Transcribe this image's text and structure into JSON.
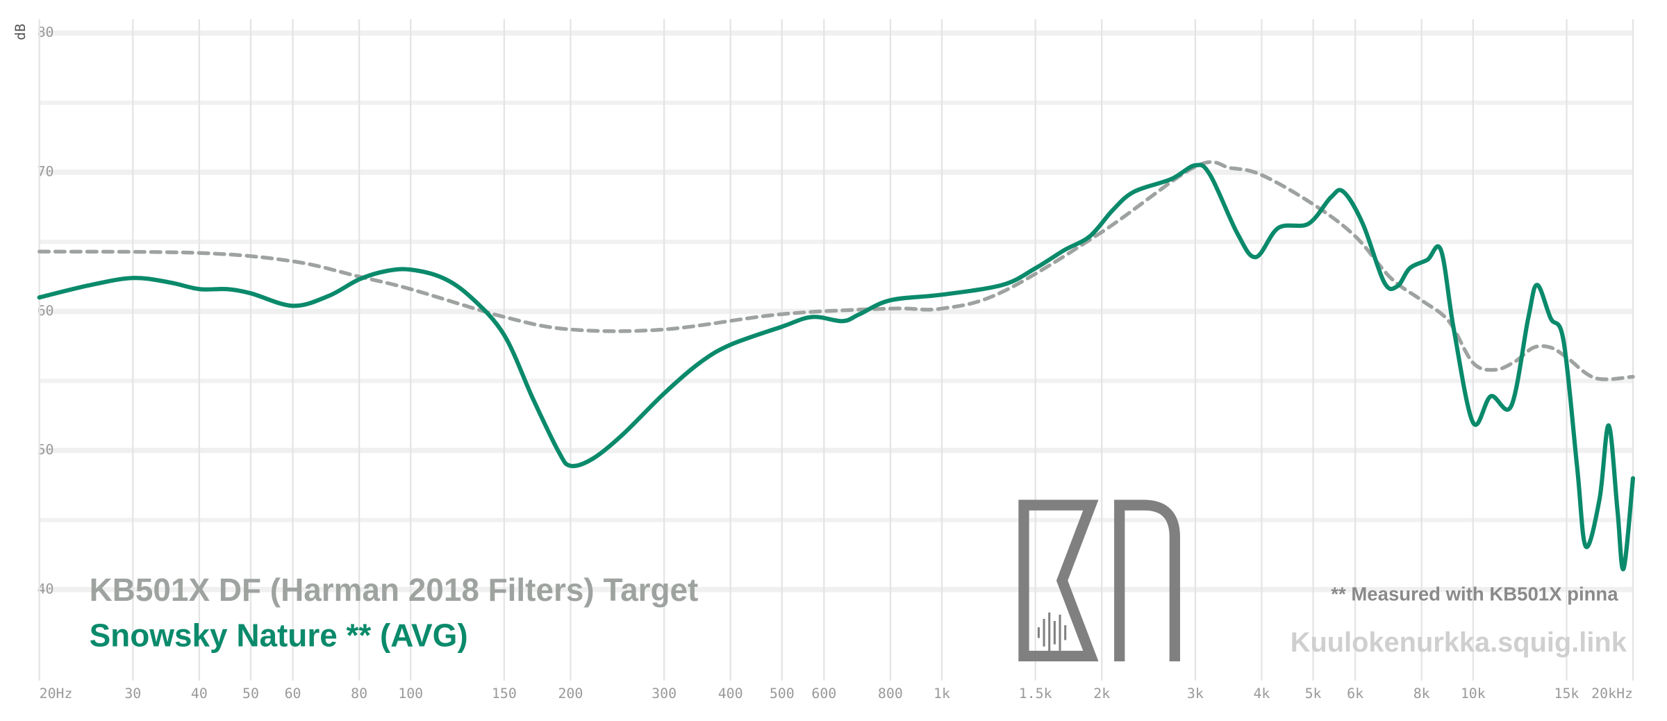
{
  "chart_data": {
    "type": "line",
    "y_label": "dB",
    "xscale": "log",
    "xlim": [
      20,
      20000
    ],
    "xticks": [
      {
        "value": 20,
        "label": "20Hz"
      },
      30,
      40,
      50,
      60,
      80,
      100,
      150,
      200,
      300,
      400,
      500,
      600,
      800,
      {
        "value": 1000,
        "label": "1k"
      },
      {
        "value": 1500,
        "label": "1.5k"
      },
      {
        "value": 2000,
        "label": "2k"
      },
      {
        "value": 3000,
        "label": "3k"
      },
      {
        "value": 4000,
        "label": "4k"
      },
      {
        "value": 5000,
        "label": "5k"
      },
      {
        "value": 6000,
        "label": "6k"
      },
      {
        "value": 8000,
        "label": "8k"
      },
      {
        "value": 10000,
        "label": "10k"
      },
      {
        "value": 15000,
        "label": "15k"
      },
      {
        "value": 20000,
        "label": "20kHz"
      }
    ],
    "ylim": [
      34,
      81
    ],
    "yticks": [
      40,
      50,
      60,
      70,
      80
    ],
    "grid": true,
    "legend": "lower left",
    "series": [
      {
        "name": "KB501X DF (Harman 2018 Filters) Target",
        "color": "#9ea3a0",
        "dashed": true,
        "x": [
          20,
          40,
          60,
          80,
          100,
          150,
          200,
          300,
          500,
          800,
          1000,
          1300,
          2000,
          3000,
          3500,
          4000,
          5000,
          6000,
          7000,
          8000,
          9000,
          10000,
          11000,
          12000,
          13000,
          14000,
          15000,
          17000,
          20000
        ],
        "values": [
          64.3,
          64.2,
          63.6,
          62.5,
          61.6,
          59.6,
          58.7,
          58.7,
          59.8,
          60.2,
          60.2,
          61.4,
          65.7,
          70.4,
          70.3,
          69.8,
          67.7,
          65.4,
          62.4,
          60.8,
          59.3,
          56.3,
          55.8,
          56.4,
          57.4,
          57.4,
          56.7,
          55.2,
          55.3
        ]
      },
      {
        "name": "Snowsky Nature ** (AVG)",
        "color": "#0a8a6b",
        "dashed": false,
        "x": [
          20,
          25,
          30,
          35,
          40,
          45,
          50,
          60,
          70,
          80,
          90,
          100,
          115,
          130,
          150,
          170,
          190,
          200,
          220,
          250,
          300,
          350,
          400,
          500,
          570,
          650,
          700,
          800,
          1000,
          1300,
          1500,
          1700,
          1900,
          2100,
          2300,
          2700,
          3000,
          3200,
          3600,
          3900,
          4300,
          4900,
          5400,
          5700,
          6200,
          6800,
          7200,
          7600,
          8200,
          8700,
          9200,
          10000,
          10800,
          11800,
          12700,
          13200,
          14000,
          14800,
          15700,
          16300,
          17300,
          18000,
          18700,
          19200,
          20000
        ],
        "values": [
          61.0,
          61.9,
          62.4,
          62.1,
          61.6,
          61.6,
          61.3,
          60.4,
          61.1,
          62.3,
          62.9,
          63.0,
          62.4,
          61.0,
          58.3,
          53.7,
          49.9,
          48.9,
          49.4,
          51.1,
          54.1,
          56.3,
          57.6,
          58.9,
          59.6,
          59.3,
          59.8,
          60.8,
          61.2,
          61.9,
          63.1,
          64.4,
          65.4,
          67.3,
          68.6,
          69.5,
          70.5,
          69.8,
          65.6,
          63.9,
          66.0,
          66.3,
          68.2,
          68.6,
          66.3,
          62.1,
          61.8,
          63.1,
          63.7,
          64.4,
          58.7,
          52.0,
          53.9,
          53.2,
          59.5,
          61.9,
          59.5,
          57.9,
          48.8,
          43.1,
          46.5,
          51.8,
          45.7,
          41.5,
          48.0
        ]
      }
    ],
    "annotations": [
      "** Measured with KB501X pinna",
      "Kuulokenurkka.squig.link"
    ]
  }
}
